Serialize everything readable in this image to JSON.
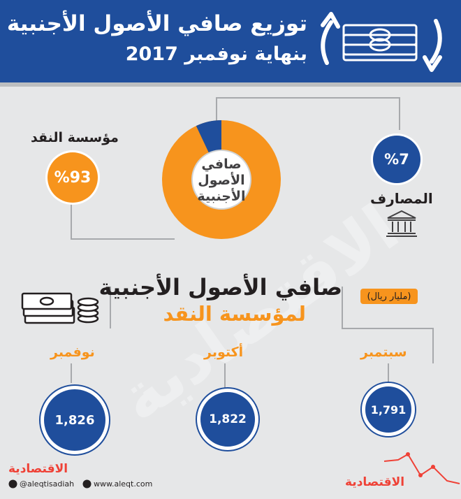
{
  "header": {
    "title_line1": "توزيع صافي الأصول الأجنبية",
    "title_line2": "بنهاية نوفمبر 2017"
  },
  "distribution": {
    "center_line1": "صافي",
    "center_line2": "الأصول",
    "center_line3": "الأجنبية",
    "sama_label": "مؤسسة النقد",
    "sama_value": "%93",
    "sama_share": 93,
    "banks_label": "المصارف",
    "banks_value": "%7",
    "banks_share": 7,
    "colors": {
      "sama": "#f7941d",
      "banks": "#1f4e9c"
    }
  },
  "sama_section": {
    "title": "صافي الأصول الأجنبية",
    "subtitle": "لمؤسسة النقد",
    "unit": "(مليار ريال)",
    "months": [
      {
        "label": "سبتمبر",
        "value": "1,791"
      },
      {
        "label": "أكتوبر",
        "value": "1,822"
      },
      {
        "label": "نوفمبر",
        "value": "1,826"
      }
    ]
  },
  "watermark": "الاقتصادية",
  "footer": {
    "logo": "الاقتصادية",
    "twitter": "@aleqtisadiah",
    "website": "www.aleqt.com",
    "brand": "الاقتصادية"
  }
}
